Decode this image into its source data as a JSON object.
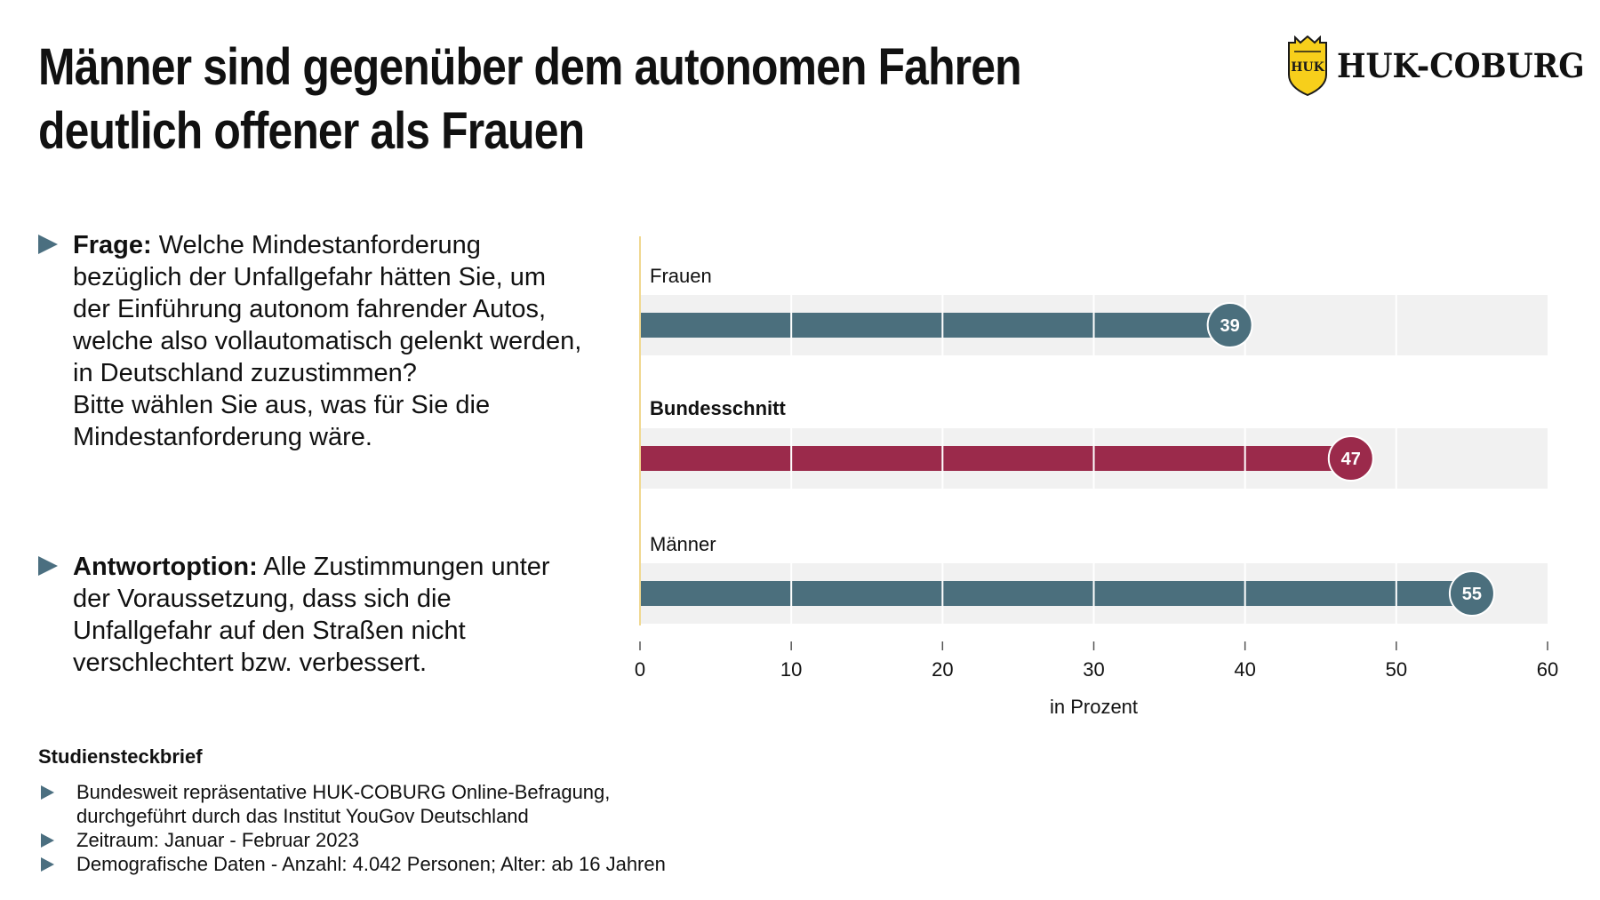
{
  "title": {
    "line1": "Männer sind gegenüber dem autonomen Fahren",
    "line2": "deutlich offener als Frauen"
  },
  "logo": {
    "text": "HUK-COBURG",
    "badge": "HUK",
    "icon": "crown-shield-icon"
  },
  "question": {
    "label": "Frage:",
    "text": " Welche Mindestanforderung bezüglich der Unfallgefahr hätten Sie, um der Einführung autonom fahrender Autos, welche also vollautomatisch gelenkt werden, in Deutschland zuzustimmen?",
    "text2": "Bitte wählen Sie aus, was für Sie die Mindestanforderung wäre."
  },
  "answer": {
    "label": "Antwortoption:",
    "text": " Alle Zustimmungen unter der Voraussetzung, dass sich die Unfallgefahr auf den Straßen nicht verschlechtert bzw. verbessert."
  },
  "chart_data": {
    "type": "bar",
    "orientation": "horizontal",
    "categories": [
      "Frauen",
      "Bundesschnitt",
      "Männer"
    ],
    "values": [
      39,
      47,
      55
    ],
    "category_bold": [
      false,
      true,
      false
    ],
    "bar_colors": [
      "#4b6f7d",
      "#9b2a4b",
      "#4b6f7d"
    ],
    "xlabel": "in Prozent",
    "xlim": [
      0,
      60
    ],
    "xticks": [
      0,
      10,
      20,
      30,
      40,
      50,
      60
    ],
    "grid": true,
    "track_color": "#f1f1f1",
    "zero_line_color": "#f0d890"
  },
  "brief": {
    "title": "Studiensteckbrief",
    "items": [
      "Bundesweit repräsentative HUK-COBURG Online-Befragung,\ndurchgeführt durch das Institut YouGov Deutschland",
      "Zeitraum: Januar - Februar 2023",
      "Demografische Daten - Anzahl: 4.042 Personen; Alter: ab 16 Jahren"
    ]
  },
  "colors": {
    "accent_arrow": "#4b6f80",
    "logo_yellow": "#f7cf1b"
  }
}
